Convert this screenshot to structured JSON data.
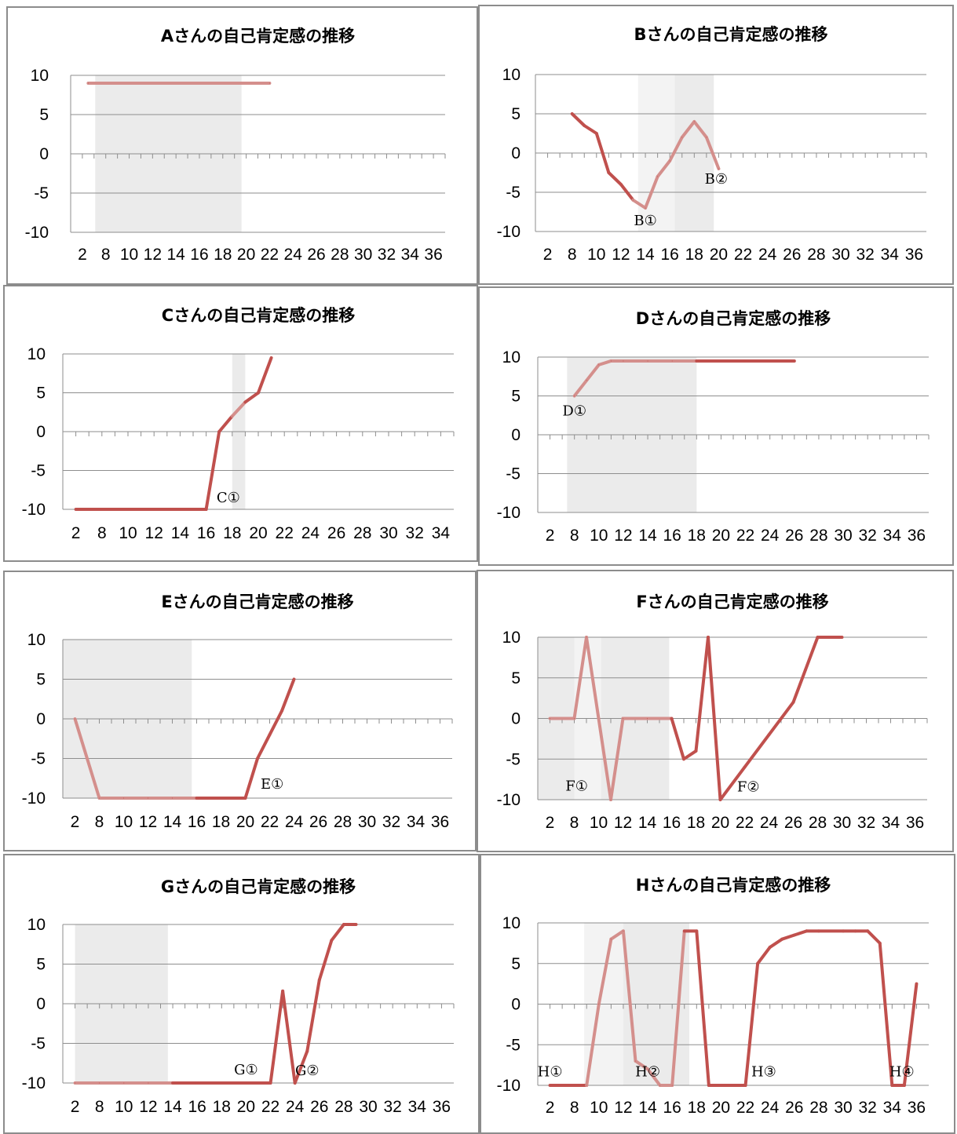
{
  "colors": {
    "line": "#c0504d",
    "line_faded": "#d48f8c",
    "shade": "#ebebeb",
    "shade_light": "#f3f3f3",
    "grid": "#8e8e8e",
    "border": "#8c8c8c"
  },
  "chart_data": [
    {
      "type": "line",
      "title": "Aさんの自己肯定感の推移",
      "ylim": [
        -10,
        10
      ],
      "yticks": [
        "10",
        "5",
        "0",
        "-5",
        "-10"
      ],
      "xticks": [
        "2",
        "8",
        "10",
        "12",
        "14",
        "16",
        "18",
        "20",
        "22",
        "24",
        "26",
        "28",
        "30",
        "32",
        "34",
        "36"
      ],
      "shaded": [
        [
          1.05,
          7.3
        ]
      ],
      "series": [
        {
          "values": [
            [
              3.5,
              9
            ],
            [
              22,
              9
            ]
          ]
        }
      ],
      "annotations": []
    },
    {
      "type": "line",
      "title": "Bさんの自己肯定感の推移",
      "ylim": [
        -10,
        10
      ],
      "yticks": [
        "10",
        "5",
        "0",
        "-5",
        "-10"
      ],
      "xticks": [
        "2",
        "8",
        "10",
        "12",
        "14",
        "16",
        "18",
        "20",
        "22",
        "24",
        "26",
        "28",
        "30",
        "32",
        "34",
        "36"
      ],
      "shaded": [
        [
          4.2,
          5.7,
          "light"
        ],
        [
          5.7,
          7.3
        ]
      ],
      "series": [
        {
          "values": [
            [
              8,
              5
            ],
            [
              9,
              3.5
            ],
            [
              10,
              2.5
            ],
            [
              11,
              -2.5
            ],
            [
              12,
              -4
            ],
            [
              13,
              -6
            ],
            [
              14,
              -7
            ],
            [
              15,
              -3
            ],
            [
              16,
              -1
            ],
            [
              17,
              2
            ],
            [
              18,
              4
            ],
            [
              19,
              2
            ],
            [
              20,
              -2
            ]
          ]
        }
      ],
      "annotations": [
        {
          "text": "B①",
          "x": 14,
          "y": -8.6
        },
        {
          "text": "B②",
          "x": 19.8,
          "y": -3.3
        }
      ]
    },
    {
      "type": "line",
      "title": "Cさんの自己肯定感の推移",
      "ylim": [
        -10,
        10
      ],
      "yticks": [
        "10",
        "5",
        "0",
        "-5",
        "-10"
      ],
      "xticks": [
        "2",
        "8",
        "10",
        "12",
        "14",
        "16",
        "18",
        "20",
        "22",
        "24",
        "26",
        "28",
        "30",
        "32",
        "34"
      ],
      "shaded": [
        [
          6.5,
          7.0
        ]
      ],
      "series": [
        {
          "values": [
            [
              2,
              -10
            ],
            [
              8,
              -10
            ],
            [
              10,
              -10
            ],
            [
              12,
              -10
            ],
            [
              14,
              -10
            ],
            [
              16,
              -10
            ],
            [
              17,
              0
            ],
            [
              18,
              2
            ],
            [
              19,
              3.8
            ],
            [
              20,
              5
            ],
            [
              21,
              9.5
            ]
          ]
        }
      ],
      "annotations": [
        {
          "text": "C①",
          "x": 17.7,
          "y": -8.5
        }
      ]
    },
    {
      "type": "line",
      "title": "Dさんの自己肯定感の推移",
      "ylim": [
        -10,
        10
      ],
      "yticks": [
        "10",
        "5",
        "0",
        "-5",
        "-10"
      ],
      "xticks": [
        "2",
        "8",
        "10",
        "12",
        "14",
        "16",
        "18",
        "20",
        "22",
        "24",
        "26",
        "28",
        "30",
        "32",
        "34",
        "36"
      ],
      "shaded": [
        [
          1.2,
          6.5
        ]
      ],
      "series": [
        {
          "values": [
            [
              8,
              5
            ],
            [
              9,
              7
            ],
            [
              10,
              9
            ],
            [
              11,
              9.5
            ],
            [
              12,
              9.5
            ],
            [
              14,
              9.5
            ],
            [
              16,
              9.5
            ],
            [
              18,
              9.5
            ],
            [
              20,
              9.5
            ],
            [
              22,
              9.5
            ],
            [
              24,
              9.5
            ],
            [
              26,
              9.5
            ]
          ]
        }
      ],
      "annotations": [
        {
          "text": "D①",
          "x": 8,
          "y": 3.1
        }
      ]
    },
    {
      "type": "line",
      "title": "Eさんの自己肯定感の推移",
      "ylim": [
        -10,
        10
      ],
      "yticks": [
        "10",
        "5",
        "0",
        "-5",
        "-10"
      ],
      "xticks": [
        "2",
        "8",
        "10",
        "12",
        "14",
        "16",
        "18",
        "20",
        "22",
        "24",
        "26",
        "28",
        "30",
        "32",
        "34",
        "36"
      ],
      "shaded": [
        [
          0,
          5.3
        ]
      ],
      "series": [
        {
          "values": [
            [
              2,
              0
            ],
            [
              8,
              -10
            ],
            [
              10,
              -10
            ],
            [
              12,
              -10
            ],
            [
              14,
              -10
            ],
            [
              16,
              -10
            ],
            [
              18,
              -10
            ],
            [
              20,
              -10
            ],
            [
              21,
              -5
            ],
            [
              22,
              -2
            ],
            [
              23,
              1
            ],
            [
              24,
              5
            ]
          ]
        }
      ],
      "annotations": [
        {
          "text": "E①",
          "x": 22.2,
          "y": -8.2
        }
      ]
    },
    {
      "type": "line",
      "title": "Fさんの自己肯定感の推移",
      "ylim": [
        -10,
        10
      ],
      "yticks": [
        "10",
        "5",
        "0",
        "-5",
        "-10"
      ],
      "xticks": [
        "2",
        "8",
        "10",
        "12",
        "14",
        "16",
        "18",
        "20",
        "22",
        "24",
        "26",
        "28",
        "30",
        "32",
        "34",
        "36"
      ],
      "shaded": [
        [
          0,
          1.5
        ],
        [
          1.5,
          2.6,
          "light"
        ],
        [
          2.6,
          5.4
        ]
      ],
      "series": [
        {
          "values": [
            [
              2,
              0
            ],
            [
              8,
              0
            ],
            [
              9,
              10
            ],
            [
              11,
              -10
            ],
            [
              12,
              0
            ],
            [
              14,
              0
            ],
            [
              16,
              0
            ],
            [
              17,
              -5
            ],
            [
              18,
              -4
            ],
            [
              19,
              10
            ],
            [
              20,
              -10
            ],
            [
              22,
              -6
            ],
            [
              24,
              -2
            ],
            [
              26,
              2
            ],
            [
              27,
              6
            ],
            [
              28,
              10
            ],
            [
              30,
              10
            ]
          ]
        }
      ],
      "annotations": [
        {
          "text": "F①",
          "x": 8.2,
          "y": -8.3
        },
        {
          "text": "F②",
          "x": 22.3,
          "y": -8.4
        }
      ]
    },
    {
      "type": "line",
      "title": "Gさんの自己肯定感の推移",
      "ylim": [
        -10,
        10
      ],
      "yticks": [
        "10",
        "5",
        "0",
        "-5",
        "-10"
      ],
      "xticks": [
        "2",
        "8",
        "10",
        "12",
        "14",
        "16",
        "18",
        "20",
        "22",
        "24",
        "26",
        "28",
        "30",
        "32",
        "34",
        "36"
      ],
      "shaded": [
        [
          0.5,
          4.3
        ]
      ],
      "series": [
        {
          "values": [
            [
              2,
              -10
            ],
            [
              8,
              -10
            ],
            [
              10,
              -10
            ],
            [
              12,
              -10
            ],
            [
              14,
              -10
            ],
            [
              16,
              -10
            ],
            [
              18,
              -10
            ],
            [
              20,
              -10
            ],
            [
              22,
              -10
            ],
            [
              23,
              1.6
            ],
            [
              24,
              -10
            ],
            [
              25,
              -6
            ],
            [
              26,
              3
            ],
            [
              27,
              8
            ],
            [
              28,
              10
            ],
            [
              29,
              10
            ]
          ]
        }
      ],
      "annotations": [
        {
          "text": "G①",
          "x": 20,
          "y": -8.3
        },
        {
          "text": "G②",
          "x": 25,
          "y": -8.4
        }
      ]
    },
    {
      "type": "line",
      "title": "Hさんの自己肯定感の推移",
      "ylim": [
        -10,
        10
      ],
      "yticks": [
        "10",
        "5",
        "0",
        "-5",
        "-10"
      ],
      "xticks": [
        "2",
        "8",
        "10",
        "12",
        "14",
        "16",
        "18",
        "20",
        "22",
        "24",
        "26",
        "28",
        "30",
        "32",
        "34",
        "36"
      ],
      "shaded": [
        [
          1.9,
          3.5,
          "light"
        ],
        [
          3.5,
          6.2
        ]
      ],
      "series": [
        {
          "values": [
            [
              2,
              -10
            ],
            [
              8,
              -10
            ],
            [
              9,
              -10
            ],
            [
              10,
              0
            ],
            [
              11,
              8
            ],
            [
              12,
              9
            ],
            [
              13,
              -7
            ],
            [
              14,
              -8
            ],
            [
              15,
              -10
            ],
            [
              16,
              -10
            ],
            [
              17,
              9
            ],
            [
              18,
              9
            ],
            [
              19,
              -10
            ],
            [
              20,
              -10
            ],
            [
              22,
              -10
            ],
            [
              23,
              5
            ],
            [
              24,
              7
            ],
            [
              25,
              8
            ],
            [
              26,
              8.5
            ],
            [
              27,
              9
            ],
            [
              28,
              9
            ],
            [
              30,
              9
            ],
            [
              31,
              9
            ],
            [
              32,
              9
            ],
            [
              33,
              7.5
            ],
            [
              34,
              -10
            ],
            [
              35,
              -10
            ],
            [
              36,
              2.5
            ]
          ]
        }
      ],
      "annotations": [
        {
          "text": "H①",
          "x": 2,
          "y": -8.3
        },
        {
          "text": "H②",
          "x": 14,
          "y": -8.3
        },
        {
          "text": "H③",
          "x": 23.5,
          "y": -8.3
        },
        {
          "text": "H④",
          "x": 34.8,
          "y": -8.3
        }
      ]
    }
  ]
}
